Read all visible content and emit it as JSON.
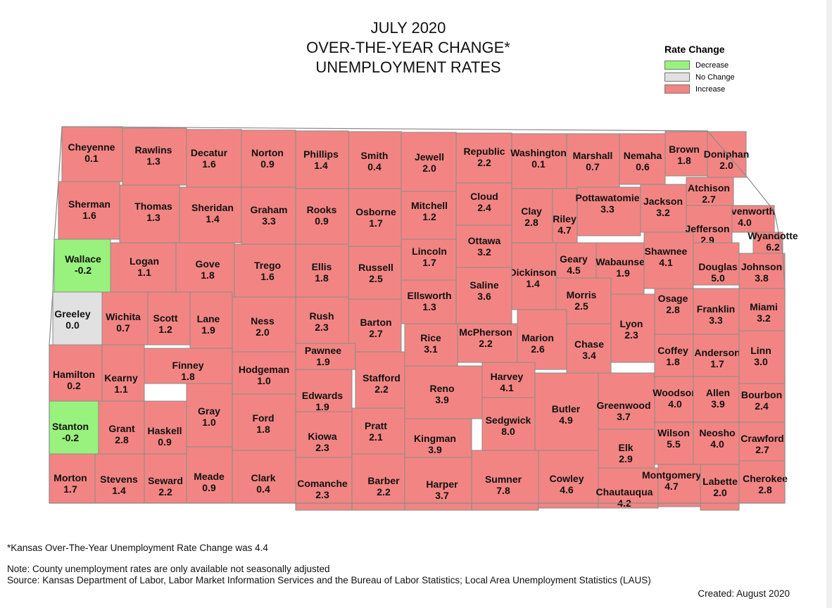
{
  "title": {
    "line1": "JULY 2020",
    "line2": "OVER-THE-YEAR CHANGE*",
    "line3": "UNEMPLOYMENT RATES"
  },
  "legend": {
    "title": "Rate Change",
    "items": [
      {
        "label": "Decrease",
        "color": "#98f27d"
      },
      {
        "label": "No Change",
        "color": "#e1e1e1"
      },
      {
        "label": "Increase",
        "color": "#f28583"
      }
    ]
  },
  "colors": {
    "decrease": "#98f27d",
    "no_change": "#e1e1e1",
    "increase": "#f28583"
  },
  "counties": [
    {
      "name": "Cheyenne",
      "value": "0.1",
      "cat": "increase"
    },
    {
      "name": "Rawlins",
      "value": "1.3",
      "cat": "increase"
    },
    {
      "name": "Decatur",
      "value": "1.6",
      "cat": "increase"
    },
    {
      "name": "Norton",
      "value": "0.9",
      "cat": "increase"
    },
    {
      "name": "Phillips",
      "value": "1.4",
      "cat": "increase"
    },
    {
      "name": "Smith",
      "value": "0.4",
      "cat": "increase"
    },
    {
      "name": "Jewell",
      "value": "2.0",
      "cat": "increase"
    },
    {
      "name": "Republic",
      "value": "2.2",
      "cat": "increase"
    },
    {
      "name": "Washington",
      "value": "0.1",
      "cat": "increase"
    },
    {
      "name": "Marshall",
      "value": "0.7",
      "cat": "increase"
    },
    {
      "name": "Nemaha",
      "value": "0.6",
      "cat": "increase"
    },
    {
      "name": "Brown",
      "value": "1.8",
      "cat": "increase"
    },
    {
      "name": "Doniphan",
      "value": "2.0",
      "cat": "increase"
    },
    {
      "name": "Sherman",
      "value": "1.6",
      "cat": "increase"
    },
    {
      "name": "Thomas",
      "value": "1.3",
      "cat": "increase"
    },
    {
      "name": "Sheridan",
      "value": "1.4",
      "cat": "increase"
    },
    {
      "name": "Graham",
      "value": "3.3",
      "cat": "increase"
    },
    {
      "name": "Rooks",
      "value": "0.9",
      "cat": "increase"
    },
    {
      "name": "Osborne",
      "value": "1.7",
      "cat": "increase"
    },
    {
      "name": "Mitchell",
      "value": "1.2",
      "cat": "increase"
    },
    {
      "name": "Cloud",
      "value": "2.4",
      "cat": "increase"
    },
    {
      "name": "Clay",
      "value": "2.8",
      "cat": "increase"
    },
    {
      "name": "Riley",
      "value": "4.7",
      "cat": "increase"
    },
    {
      "name": "Pottawatomie",
      "value": "3.3",
      "cat": "increase"
    },
    {
      "name": "Jackson",
      "value": "3.2",
      "cat": "increase"
    },
    {
      "name": "Atchison",
      "value": "2.7",
      "cat": "increase"
    },
    {
      "name": "Leavenworth",
      "value": "4.0",
      "cat": "increase"
    },
    {
      "name": "Jefferson",
      "value": "2.9",
      "cat": "increase"
    },
    {
      "name": "Wyandotte",
      "value": "6.2",
      "cat": "increase"
    },
    {
      "name": "Wallace",
      "value": "-0.2",
      "cat": "decrease"
    },
    {
      "name": "Logan",
      "value": "1.1",
      "cat": "increase"
    },
    {
      "name": "Gove",
      "value": "1.8",
      "cat": "increase"
    },
    {
      "name": "Trego",
      "value": "1.6",
      "cat": "increase"
    },
    {
      "name": "Ellis",
      "value": "1.8",
      "cat": "increase"
    },
    {
      "name": "Russell",
      "value": "2.5",
      "cat": "increase"
    },
    {
      "name": "Lincoln",
      "value": "1.7",
      "cat": "increase"
    },
    {
      "name": "Ottawa",
      "value": "3.2",
      "cat": "increase"
    },
    {
      "name": "Dickinson",
      "value": "1.4",
      "cat": "increase"
    },
    {
      "name": "Geary",
      "value": "4.5",
      "cat": "increase"
    },
    {
      "name": "Wabaunsee",
      "value": "1.9",
      "cat": "increase"
    },
    {
      "name": "Shawnee",
      "value": "4.1",
      "cat": "increase"
    },
    {
      "name": "Douglas",
      "value": "5.0",
      "cat": "increase"
    },
    {
      "name": "Johnson",
      "value": "3.8",
      "cat": "increase"
    },
    {
      "name": "Greeley",
      "value": "0.0",
      "cat": "no_change"
    },
    {
      "name": "Wichita",
      "value": "0.7",
      "cat": "increase"
    },
    {
      "name": "Scott",
      "value": "1.2",
      "cat": "increase"
    },
    {
      "name": "Lane",
      "value": "1.9",
      "cat": "increase"
    },
    {
      "name": "Ness",
      "value": "2.0",
      "cat": "increase"
    },
    {
      "name": "Rush",
      "value": "2.3",
      "cat": "increase"
    },
    {
      "name": "Barton",
      "value": "2.7",
      "cat": "increase"
    },
    {
      "name": "Ellsworth",
      "value": "1.3",
      "cat": "increase"
    },
    {
      "name": "Saline",
      "value": "3.6",
      "cat": "increase"
    },
    {
      "name": "Morris",
      "value": "2.5",
      "cat": "increase"
    },
    {
      "name": "Lyon",
      "value": "2.3",
      "cat": "increase"
    },
    {
      "name": "Osage",
      "value": "2.8",
      "cat": "increase"
    },
    {
      "name": "Franklin",
      "value": "3.3",
      "cat": "increase"
    },
    {
      "name": "Miami",
      "value": "3.2",
      "cat": "increase"
    },
    {
      "name": "Hamilton",
      "value": "0.2",
      "cat": "increase"
    },
    {
      "name": "Kearny",
      "value": "1.1",
      "cat": "increase"
    },
    {
      "name": "Finney",
      "value": "1.8",
      "cat": "increase"
    },
    {
      "name": "Hodgeman",
      "value": "1.0",
      "cat": "increase"
    },
    {
      "name": "Pawnee",
      "value": "1.9",
      "cat": "increase"
    },
    {
      "name": "Stafford",
      "value": "2.2",
      "cat": "increase"
    },
    {
      "name": "Rice",
      "value": "3.1",
      "cat": "increase"
    },
    {
      "name": "McPherson",
      "value": "2.2",
      "cat": "increase"
    },
    {
      "name": "Marion",
      "value": "2.6",
      "cat": "increase"
    },
    {
      "name": "Chase",
      "value": "3.4",
      "cat": "increase"
    },
    {
      "name": "Coffey",
      "value": "1.8",
      "cat": "increase"
    },
    {
      "name": "Anderson",
      "value": "1.7",
      "cat": "increase"
    },
    {
      "name": "Linn",
      "value": "3.0",
      "cat": "increase"
    },
    {
      "name": "Gray",
      "value": "1.0",
      "cat": "increase"
    },
    {
      "name": "Ford",
      "value": "1.8",
      "cat": "increase"
    },
    {
      "name": "Edwards",
      "value": "1.9",
      "cat": "increase"
    },
    {
      "name": "Reno",
      "value": "3.9",
      "cat": "increase"
    },
    {
      "name": "Harvey",
      "value": "4.1",
      "cat": "increase"
    },
    {
      "name": "Butler",
      "value": "4.9",
      "cat": "increase"
    },
    {
      "name": "Greenwood",
      "value": "3.7",
      "cat": "increase"
    },
    {
      "name": "Woodson",
      "value": "4.0",
      "cat": "increase"
    },
    {
      "name": "Allen",
      "value": "3.9",
      "cat": "increase"
    },
    {
      "name": "Bourbon",
      "value": "2.4",
      "cat": "increase"
    },
    {
      "name": "Stanton",
      "value": "-0.2",
      "cat": "decrease"
    },
    {
      "name": "Grant",
      "value": "2.8",
      "cat": "increase"
    },
    {
      "name": "Haskell",
      "value": "0.9",
      "cat": "increase"
    },
    {
      "name": "Kiowa",
      "value": "2.3",
      "cat": "increase"
    },
    {
      "name": "Pratt",
      "value": "2.1",
      "cat": "increase"
    },
    {
      "name": "Kingman",
      "value": "3.9",
      "cat": "increase"
    },
    {
      "name": "Sedgwick",
      "value": "8.0",
      "cat": "increase"
    },
    {
      "name": "Elk",
      "value": "2.9",
      "cat": "increase"
    },
    {
      "name": "Wilson",
      "value": "5.5",
      "cat": "increase"
    },
    {
      "name": "Neosho",
      "value": "4.0",
      "cat": "increase"
    },
    {
      "name": "Crawford",
      "value": "2.7",
      "cat": "increase"
    },
    {
      "name": "Morton",
      "value": "1.7",
      "cat": "increase"
    },
    {
      "name": "Stevens",
      "value": "1.4",
      "cat": "increase"
    },
    {
      "name": "Seward",
      "value": "2.2",
      "cat": "increase"
    },
    {
      "name": "Meade",
      "value": "0.9",
      "cat": "increase"
    },
    {
      "name": "Clark",
      "value": "0.4",
      "cat": "increase"
    },
    {
      "name": "Comanche",
      "value": "2.3",
      "cat": "increase"
    },
    {
      "name": "Barber",
      "value": "2.2",
      "cat": "increase"
    },
    {
      "name": "Harper",
      "value": "3.7",
      "cat": "increase"
    },
    {
      "name": "Sumner",
      "value": "7.8",
      "cat": "increase"
    },
    {
      "name": "Cowley",
      "value": "4.6",
      "cat": "increase"
    },
    {
      "name": "Chautauqua",
      "value": "4.2",
      "cat": "increase"
    },
    {
      "name": "Montgomery",
      "value": "4.7",
      "cat": "increase"
    },
    {
      "name": "Labette",
      "value": "2.0",
      "cat": "increase"
    },
    {
      "name": "Cherokee",
      "value": "2.8",
      "cat": "increase"
    }
  ],
  "notes": {
    "footnote": "*Kansas Over-The-Year Unemployment Rate Change was 4.4",
    "note": "Note: County unemployment rates are only available not seasonally adjusted",
    "source": "Source: Kansas Department of Labor, Labor Market Information Services and the Bureau of Labor Statistics; Local Area Unemployment Statistics (LAUS)",
    "created": "Created:  August 2020"
  }
}
